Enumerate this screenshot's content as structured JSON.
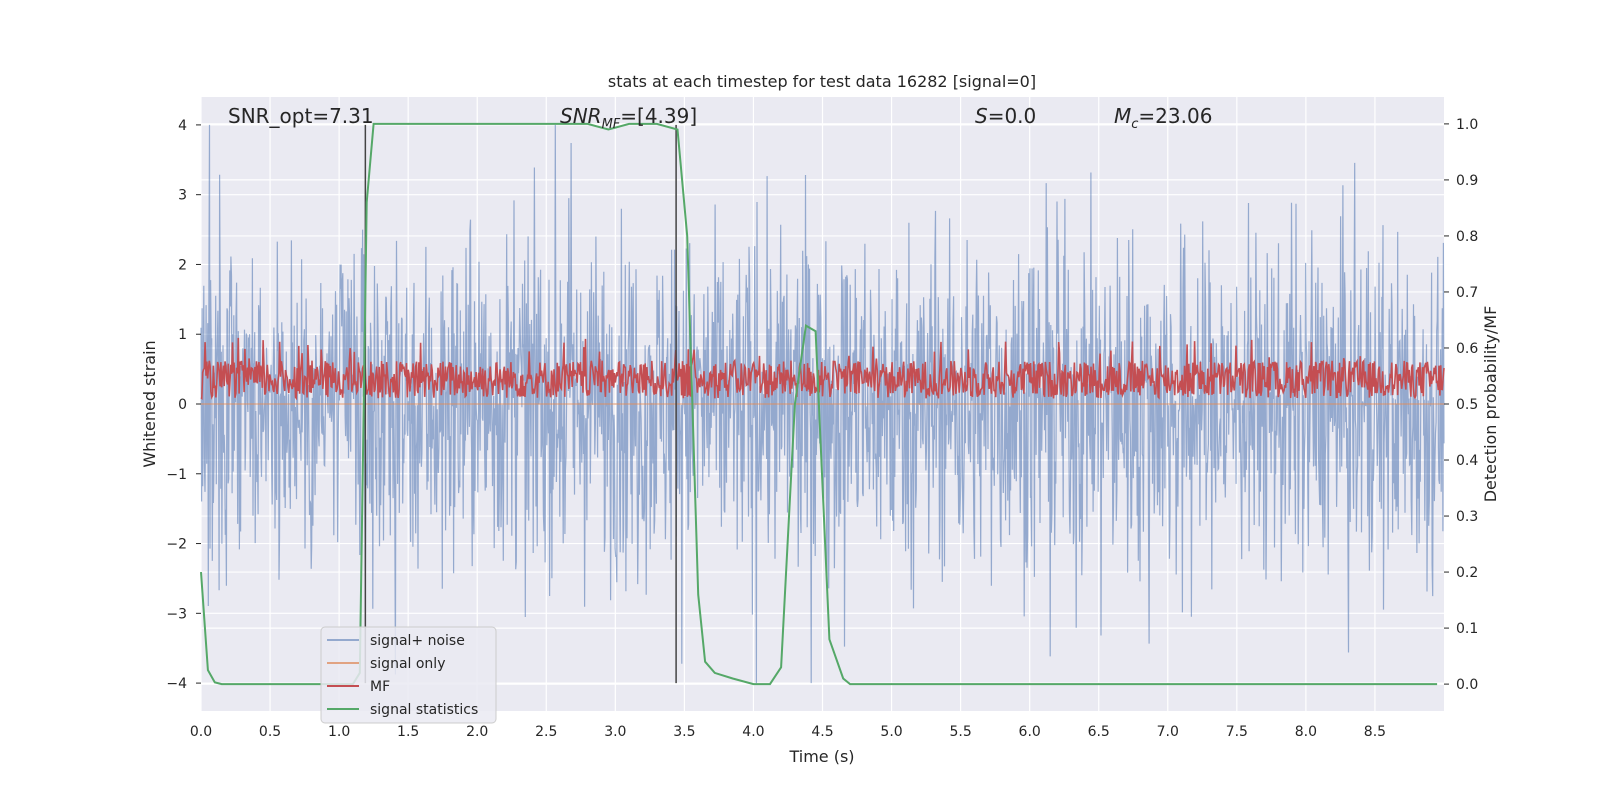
{
  "chart_data": {
    "type": "line",
    "title": "stats at each timestep for test data 16282 [signal=0]",
    "xlabel": "Time (s)",
    "ylabel": "Whitened strain",
    "ylabel_right": "Detection probability/MF",
    "xlim": [
      0.0,
      9.0
    ],
    "ylim": [
      -4.4,
      4.4
    ],
    "ylim_right": [
      -0.048,
      1.048
    ],
    "xticks": [
      "0.0",
      "0.5",
      "1.0",
      "1.5",
      "2.0",
      "2.5",
      "3.0",
      "3.5",
      "4.0",
      "4.5",
      "5.0",
      "5.5",
      "6.0",
      "6.5",
      "7.0",
      "7.5",
      "8.0",
      "8.5"
    ],
    "yticks": [
      "−4",
      "−3",
      "−2",
      "−1",
      "0",
      "1",
      "2",
      "3",
      "4"
    ],
    "yticks_right": [
      "0.0",
      "0.1",
      "0.2",
      "0.3",
      "0.4",
      "0.5",
      "0.6",
      "0.7",
      "0.8",
      "0.9",
      "1.0"
    ],
    "grid": true,
    "legend_position": "lower-left",
    "annotations": [
      {
        "pre": "SNR_opt=7.31",
        "sub": "",
        "post": ""
      },
      {
        "pre": "SNR",
        "sub": "MF",
        "post": "=[4.39]"
      },
      {
        "pre": "S",
        "sub": "",
        "post": "=0.0"
      },
      {
        "pre": "M",
        "sub": "c",
        "post": "=23.06"
      }
    ],
    "vlines_x": [
      1.19,
      3.44
    ],
    "series": [
      {
        "name": "signal+ noise",
        "color": "#4c72b0",
        "style": "noise",
        "amplitude_typical": 2.0,
        "amplitude_max": 4.0
      },
      {
        "name": "signal only",
        "color": "#dd8452",
        "style": "flat",
        "values": [
          0
        ]
      },
      {
        "name": "MF",
        "color": "#c44e52",
        "style": "band",
        "range": [
          0.51,
          0.6
        ]
      },
      {
        "name": "signal statistics",
        "color": "#55a868",
        "style": "line",
        "x": [
          0.0,
          0.05,
          0.1,
          0.15,
          1.1,
          1.15,
          1.2,
          1.25,
          1.3,
          2.5,
          2.8,
          2.95,
          3.1,
          3.3,
          3.45,
          3.52,
          3.6,
          3.65,
          3.72,
          3.85,
          4.0,
          4.12,
          4.2,
          4.3,
          4.38,
          4.45,
          4.55,
          4.65,
          4.7,
          8.95
        ],
        "y": [
          0.2,
          0.025,
          0.003,
          0.0,
          0.0,
          0.02,
          0.86,
          1.0,
          1.0,
          1.0,
          1.0,
          0.99,
          1.0,
          1.0,
          0.99,
          0.8,
          0.16,
          0.04,
          0.02,
          0.01,
          0.0,
          0.0,
          0.03,
          0.5,
          0.64,
          0.63,
          0.08,
          0.01,
          0.0,
          0.0
        ]
      }
    ]
  }
}
